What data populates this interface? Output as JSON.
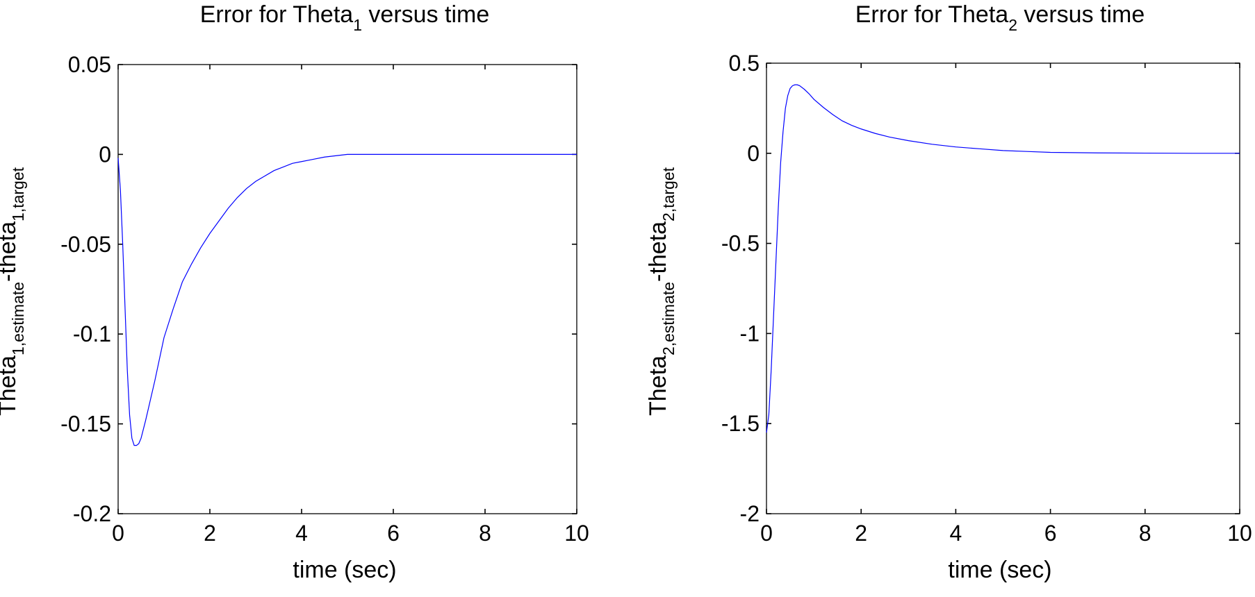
{
  "chart_data": [
    {
      "type": "line",
      "title": {
        "prefix": "Error for Theta",
        "sub": "1",
        "suffix": " versus time"
      },
      "xlabel": "time (sec)",
      "ylabel": {
        "a": "Theta",
        "a_sub": "1,estimate",
        "b": "-theta",
        "b_sub": "1,target"
      },
      "xlim": [
        0,
        10
      ],
      "ylim": [
        -0.2,
        0.05
      ],
      "xticks": [
        0,
        2,
        4,
        6,
        8,
        10
      ],
      "xtick_labels": [
        "0",
        "2",
        "4",
        "6",
        "8",
        "10"
      ],
      "yticks": [
        0.05,
        0,
        -0.05,
        -0.1,
        -0.15,
        -0.2
      ],
      "ytick_labels": [
        "0.05",
        "0",
        "-0.05",
        "-0.1",
        "-0.15",
        "-0.2"
      ],
      "grid": false,
      "series": [
        {
          "color": "#0000ff",
          "x": [
            0,
            0.05,
            0.1,
            0.15,
            0.2,
            0.25,
            0.3,
            0.35,
            0.4,
            0.45,
            0.5,
            0.6,
            0.7,
            0.8,
            0.9,
            1.0,
            1.2,
            1.4,
            1.6,
            1.8,
            2.0,
            2.2,
            2.4,
            2.6,
            2.8,
            3.0,
            3.2,
            3.4,
            3.6,
            3.8,
            4.0,
            4.2,
            4.5,
            5.0,
            5.5,
            6.0,
            7.0,
            8.0,
            9.0,
            10.0
          ],
          "y": [
            -0.002,
            -0.02,
            -0.05,
            -0.085,
            -0.12,
            -0.145,
            -0.158,
            -0.162,
            -0.162,
            -0.161,
            -0.158,
            -0.148,
            -0.137,
            -0.126,
            -0.114,
            -0.102,
            -0.086,
            -0.071,
            -0.061,
            -0.052,
            -0.044,
            -0.037,
            -0.03,
            -0.024,
            -0.019,
            -0.015,
            -0.012,
            -0.009,
            -0.007,
            -0.005,
            -0.004,
            -0.003,
            -0.0015,
            0,
            0,
            0,
            0,
            0,
            0,
            0
          ]
        }
      ]
    },
    {
      "type": "line",
      "title": {
        "prefix": "Error for Theta",
        "sub": "2",
        "suffix": " versus time"
      },
      "xlabel": "time (sec)",
      "ylabel": {
        "a": "Theta",
        "a_sub": "2,estimate",
        "b": "-theta",
        "b_sub": "2,target"
      },
      "xlim": [
        0,
        10
      ],
      "ylim": [
        -2,
        0.5
      ],
      "xticks": [
        0,
        2,
        4,
        6,
        8,
        10
      ],
      "xtick_labels": [
        "0",
        "2",
        "4",
        "6",
        "8",
        "10"
      ],
      "yticks": [
        0.5,
        0,
        -0.5,
        -1,
        -1.5,
        -2
      ],
      "ytick_labels": [
        "0.5",
        "0",
        "-0.5",
        "-1",
        "-1.5",
        "-2"
      ],
      "grid": false,
      "series": [
        {
          "color": "#0000ff",
          "x": [
            0,
            0.05,
            0.1,
            0.15,
            0.2,
            0.25,
            0.3,
            0.35,
            0.4,
            0.45,
            0.5,
            0.55,
            0.6,
            0.65,
            0.7,
            0.8,
            0.9,
            1.0,
            1.2,
            1.4,
            1.6,
            1.8,
            2.0,
            2.3,
            2.6,
            3.0,
            3.5,
            4.0,
            4.5,
            5.0,
            5.5,
            6.0,
            7.0,
            8.0,
            9.0,
            10.0
          ],
          "y": [
            -1.55,
            -1.45,
            -1.2,
            -0.9,
            -0.6,
            -0.3,
            -0.05,
            0.12,
            0.25,
            0.32,
            0.36,
            0.375,
            0.38,
            0.38,
            0.375,
            0.355,
            0.33,
            0.3,
            0.255,
            0.215,
            0.18,
            0.155,
            0.135,
            0.11,
            0.09,
            0.07,
            0.05,
            0.035,
            0.025,
            0.015,
            0.01,
            0.005,
            0.002,
            0.001,
            0,
            0
          ]
        }
      ]
    }
  ]
}
